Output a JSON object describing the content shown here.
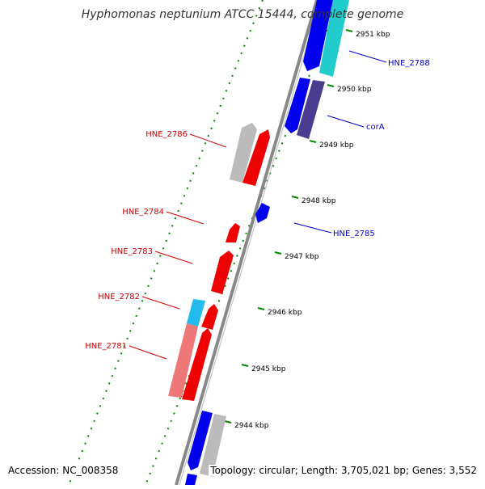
{
  "title": "Hyphomonas neptunium ATCC 15444, complete genome",
  "footer": {
    "accession": "Accession: NC_008358",
    "info": "Topology: circular; Length: 3,705,021 bp; Genes: 3,552"
  },
  "ticks": [
    "2951 kbp",
    "2950 kbp",
    "2949 kbp",
    "2948 kbp",
    "2947 kbp",
    "2946 kbp",
    "2945 kbp",
    "2944 kbp"
  ],
  "gene_labels": {
    "forward": [
      "HNE_2788",
      "corA",
      "HNE_2785"
    ],
    "reverse": [
      "HNE_2786",
      "HNE_2784",
      "HNE_2783",
      "HNE_2782",
      "HNE_2781"
    ]
  },
  "colors": {
    "forward_label": "#0000cc",
    "reverse_label": "#cc0000",
    "blue_gene": "#0000ee",
    "red_gene": "#ee0000",
    "cyan_gene": "#22cccc",
    "purple_gene": "#4a3d8f",
    "gray_gene": "#bbbbbb",
    "salmon_gene": "#ee7777",
    "skyblue_gene": "#22bbee",
    "backbone": "#888888",
    "dotted_track": "#008800"
  }
}
